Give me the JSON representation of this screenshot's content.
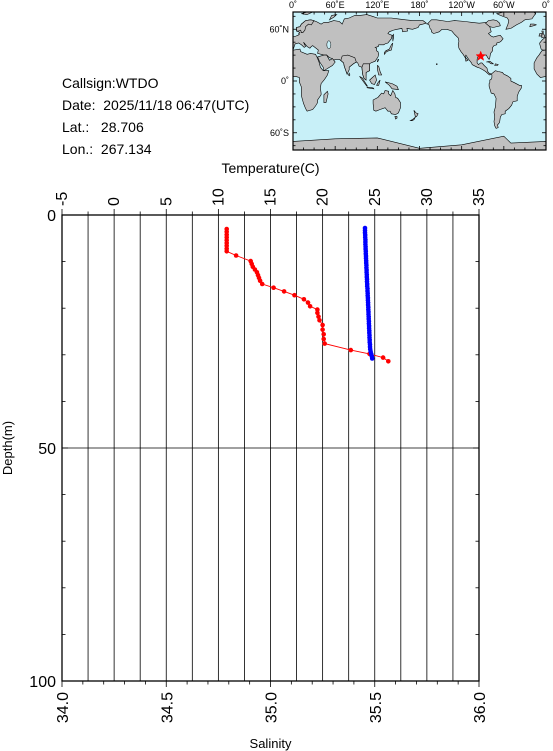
{
  "station": {
    "callsign_text": "Callsign:WTDO",
    "date_label": "Date:",
    "date_value": "2025/11/18 06:47(UTC)",
    "lat_label": "Lat.:",
    "lat_value": "28.706",
    "lon_label": "Lon.:",
    "lon_value": "267.134"
  },
  "map": {
    "ocean_color": "#c8f0f8",
    "land_color": "#c0c0c0",
    "marker_color": "#ff0000",
    "marker_icon": "red-star-icon",
    "top_labels": [
      "0˚",
      "60˚E",
      "120˚E",
      "180˚",
      "120˚W",
      "60˚W",
      "0˚"
    ],
    "left_labels": [
      "60˚N",
      "0˚",
      "60˚S"
    ],
    "marker_lon": 267.134,
    "marker_lat": 28.706
  },
  "chart_data": {
    "type": "scatter",
    "title": "",
    "temperature_axis": {
      "label": "Temperature(C)",
      "range": [
        -5,
        35
      ],
      "ticks": [
        -5,
        0,
        5,
        10,
        15,
        20,
        25,
        30,
        35
      ]
    },
    "salinity_axis": {
      "label": "Salinity",
      "range": [
        34.0,
        36.0
      ],
      "ticks": [
        "34.0",
        "34.5",
        "35.0",
        "35.5",
        "36.0"
      ]
    },
    "depth_axis": {
      "label": "Depth(m)",
      "range": [
        0,
        100
      ],
      "ticks": [
        0,
        50,
        100
      ],
      "inverted": true
    },
    "grid": true,
    "series": [
      {
        "name": "",
        "quantity": "temperature",
        "color": "#ff0000",
        "connected": true,
        "points": [
          [
            10.8,
            3.0
          ],
          [
            10.8,
            3.6
          ],
          [
            10.8,
            4.2
          ],
          [
            10.8,
            4.8
          ],
          [
            10.8,
            5.4
          ],
          [
            10.8,
            6.0
          ],
          [
            10.8,
            6.6
          ],
          [
            10.8,
            7.2
          ],
          [
            10.8,
            7.8
          ],
          [
            11.7,
            8.7
          ],
          [
            13.1,
            9.9
          ],
          [
            13.2,
            10.5
          ],
          [
            13.3,
            11.1
          ],
          [
            13.5,
            11.7
          ],
          [
            13.7,
            12.3
          ],
          [
            13.8,
            12.9
          ],
          [
            13.9,
            13.5
          ],
          [
            14.0,
            14.1
          ],
          [
            14.2,
            14.8
          ],
          [
            15.3,
            15.6
          ],
          [
            16.3,
            16.4
          ],
          [
            17.3,
            17.2
          ],
          [
            18.2,
            18.1
          ],
          [
            18.6,
            18.8
          ],
          [
            18.8,
            19.6
          ],
          [
            19.5,
            20.3
          ],
          [
            19.5,
            21.0
          ],
          [
            19.6,
            21.8
          ],
          [
            19.7,
            22.6
          ],
          [
            20.0,
            23.6
          ],
          [
            20.0,
            24.6
          ],
          [
            20.1,
            25.6
          ],
          [
            20.1,
            26.6
          ],
          [
            20.2,
            27.6
          ],
          [
            22.7,
            29.0
          ],
          [
            24.5,
            29.8
          ],
          [
            25.8,
            30.6
          ],
          [
            26.3,
            31.4
          ]
        ]
      },
      {
        "name": "",
        "quantity": "salinity",
        "color": "#0000ff",
        "connected": true,
        "points": [
          [
            35.453,
            2.8
          ],
          [
            35.453,
            3.3
          ],
          [
            35.453,
            3.8
          ],
          [
            35.454,
            4.3
          ],
          [
            35.454,
            4.8
          ],
          [
            35.455,
            5.3
          ],
          [
            35.455,
            5.8
          ],
          [
            35.455,
            6.3
          ],
          [
            35.456,
            6.8
          ],
          [
            35.456,
            7.3
          ],
          [
            35.457,
            7.8
          ],
          [
            35.457,
            8.3
          ],
          [
            35.458,
            8.8
          ],
          [
            35.458,
            9.3
          ],
          [
            35.459,
            9.8
          ],
          [
            35.459,
            10.3
          ],
          [
            35.46,
            10.8
          ],
          [
            35.46,
            11.3
          ],
          [
            35.461,
            11.8
          ],
          [
            35.461,
            12.3
          ],
          [
            35.462,
            12.8
          ],
          [
            35.462,
            13.3
          ],
          [
            35.463,
            13.8
          ],
          [
            35.463,
            14.3
          ],
          [
            35.464,
            14.8
          ],
          [
            35.464,
            15.3
          ],
          [
            35.465,
            15.8
          ],
          [
            35.465,
            16.3
          ],
          [
            35.466,
            16.8
          ],
          [
            35.466,
            17.3
          ],
          [
            35.467,
            17.8
          ],
          [
            35.467,
            18.3
          ],
          [
            35.468,
            18.8
          ],
          [
            35.468,
            19.3
          ],
          [
            35.469,
            19.8
          ],
          [
            35.469,
            20.3
          ],
          [
            35.47,
            20.8
          ],
          [
            35.47,
            21.3
          ],
          [
            35.471,
            21.8
          ],
          [
            35.471,
            22.3
          ],
          [
            35.472,
            22.8
          ],
          [
            35.472,
            23.3
          ],
          [
            35.473,
            23.8
          ],
          [
            35.473,
            24.3
          ],
          [
            35.474,
            24.8
          ],
          [
            35.474,
            25.3
          ],
          [
            35.475,
            25.8
          ],
          [
            35.475,
            26.3
          ],
          [
            35.476,
            26.8
          ],
          [
            35.476,
            27.3
          ],
          [
            35.477,
            27.8
          ],
          [
            35.477,
            28.3
          ],
          [
            35.478,
            28.8
          ],
          [
            35.48,
            29.3
          ],
          [
            35.483,
            29.8
          ],
          [
            35.486,
            30.3
          ],
          [
            35.488,
            30.8
          ]
        ]
      }
    ]
  }
}
